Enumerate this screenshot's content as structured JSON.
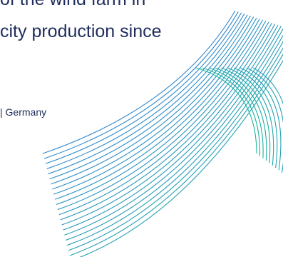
{
  "slide": {
    "headline_line1": "of the wind farm in",
    "headline_line2": "city production since",
    "location_text": "| Germany"
  },
  "colors": {
    "text": "#1f2d5c",
    "line_blue": "#2e86cf",
    "line_teal": "#1ab59d",
    "background": "#ffffff"
  }
}
